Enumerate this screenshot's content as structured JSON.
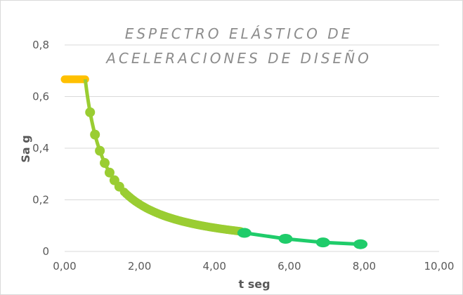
{
  "chart_data": {
    "type": "scatter",
    "title_lines": [
      "ESPECTRO ELÁSTICO DE",
      "ACELERACIONES DE DISEÑO"
    ],
    "xlabel": "t seg",
    "ylabel": "Sa g",
    "xlim": [
      0,
      10
    ],
    "ylim": [
      0,
      0.8
    ],
    "x_ticks": [
      "0,00",
      "2,00",
      "4,00",
      "6,00",
      "8,00",
      "10,00"
    ],
    "y_ticks": [
      "0",
      "0,2",
      "0,4",
      "0,6",
      "0,8"
    ],
    "grid": true,
    "legend": "none",
    "plateau": {
      "Sa": 0.667,
      "t_start": 0.0,
      "t_end": 0.55,
      "color": "#ffc000"
    },
    "descending_branch": {
      "t_start": 0.55,
      "t_end": 4.7,
      "coefficient": 0.3667,
      "color": "#9acd32"
    },
    "long_period_branch": {
      "color": "#1fcc6a",
      "points": [
        {
          "t": 4.8,
          "Sa": 0.072
        },
        {
          "t": 5.9,
          "Sa": 0.049
        },
        {
          "t": 6.9,
          "Sa": 0.035
        },
        {
          "t": 7.9,
          "Sa": 0.028
        }
      ]
    }
  }
}
